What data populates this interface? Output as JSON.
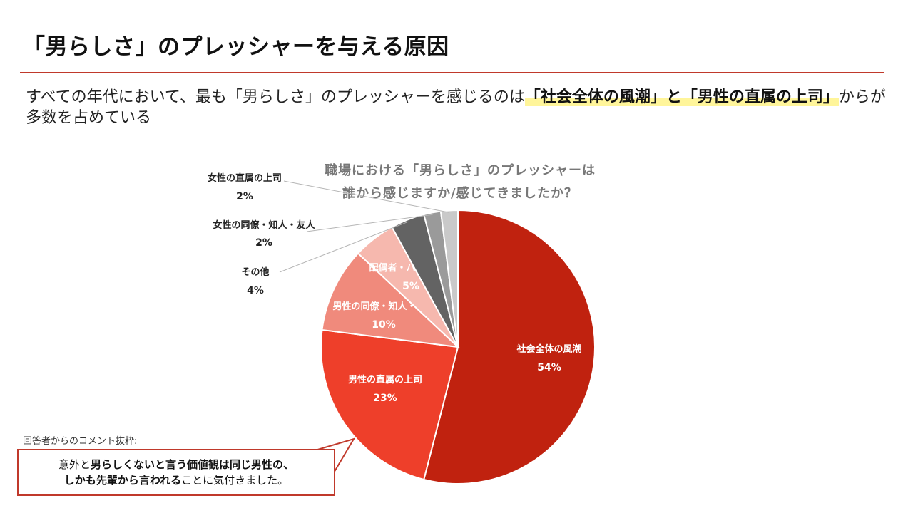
{
  "page": {
    "title": "「男らしさ」のプレッシャーを与える原因",
    "subtitle": {
      "pre": "すべての年代において、最も「男らしさ」のプレッシャーを感じるのは",
      "highlight1": "「社会全体の風潮」",
      "mid": "と",
      "highlight2": "「男性の直属の上司」",
      "post": "からが多数を占めている"
    }
  },
  "chart_data": {
    "type": "pie",
    "title_line1": "職場における「男らしさ」のプレッシャーは",
    "title_line2": "誰から感じますか/感じてきましたか？",
    "slices": [
      {
        "label": "社会全体の風潮",
        "value": 54,
        "value_label": "54%",
        "color": "#c0220f",
        "label_inside": true
      },
      {
        "label": "男性の直属の上司",
        "value": 23,
        "value_label": "23%",
        "color": "#ee3f2a",
        "label_inside": true
      },
      {
        "label": "男性の同僚・知人・友人",
        "value": 10,
        "value_label": "10%",
        "color": "#f08a7c",
        "label_inside": true
      },
      {
        "label": "配偶者・パートナー",
        "value": 5,
        "value_label": "5%",
        "color": "#f6b8ae",
        "label_inside": true
      },
      {
        "label": "その他",
        "value": 4,
        "value_label": "4%",
        "color": "#636363",
        "label_inside": false
      },
      {
        "label": "女性の同僚・知人・友人",
        "value": 2,
        "value_label": "2%",
        "color": "#9a9a9a",
        "label_inside": false
      },
      {
        "label": "女性の直属の上司",
        "value": 2,
        "value_label": "2%",
        "color": "#c9c9c9",
        "label_inside": false
      }
    ]
  },
  "comment": {
    "label": "回答者からのコメント抜粋:",
    "line1_pre": "意外と",
    "line1_bold": "男らしくないと言う価値観は同じ男性の、",
    "line2_bold": "しかも先輩から言われる",
    "line2_post": "ことに気付きました。"
  }
}
